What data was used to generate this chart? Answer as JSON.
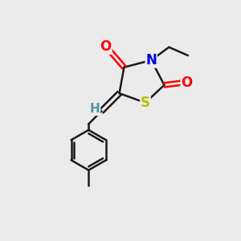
{
  "background_color": "#ebebeb",
  "bond_color": "#1a1a1a",
  "atom_colors": {
    "O": "#ff0000",
    "N": "#0000ee",
    "S": "#bbbb00",
    "H": "#4a9a9a",
    "C": "#1a1a1a"
  },
  "figsize": [
    3.0,
    3.0
  ],
  "dpi": 100,
  "lw": 1.8,
  "fontsize": 11
}
